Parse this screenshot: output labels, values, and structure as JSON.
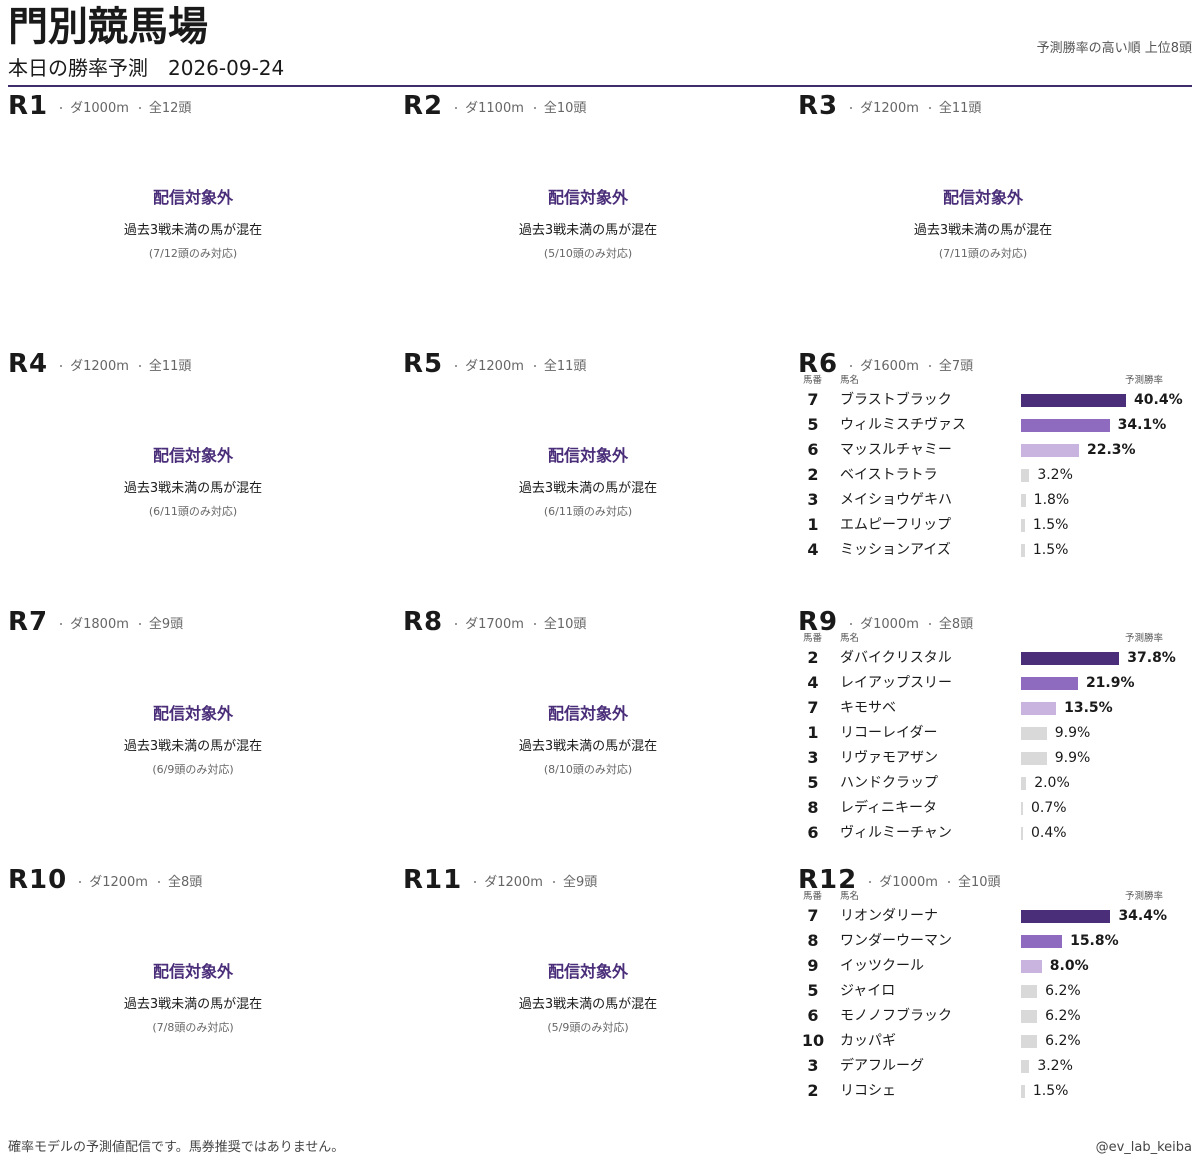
{
  "header": {
    "title": "門別競馬場",
    "subtitle": "本日の勝率予測　2026-09-24",
    "note": "予測勝率の高い順 上位8頭"
  },
  "races": [
    {
      "race": "R1",
      "course": "ダ1000m",
      "runners": "全12頭",
      "status": "配信対象外",
      "reason": "過去3戦未満の馬が混在",
      "coverage": "(7/12頭のみ対応)"
    },
    {
      "race": "R2",
      "course": "ダ1100m",
      "runners": "全10頭",
      "status": "配信対象外",
      "reason": "過去3戦未満の馬が混在",
      "coverage": "(5/10頭のみ対応)"
    },
    {
      "race": "R3",
      "course": "ダ1200m",
      "runners": "全11頭",
      "status": "配信対象外",
      "reason": "過去3戦未満の馬が混在",
      "coverage": "(7/11頭のみ対応)"
    },
    {
      "race": "R4",
      "course": "ダ1200m",
      "runners": "全11頭",
      "status": "配信対象外",
      "reason": "過去3戦未満の馬が混在",
      "coverage": "(6/11頭のみ対応)"
    },
    {
      "race": "R5",
      "course": "ダ1200m",
      "runners": "全11頭",
      "status": "配信対象外",
      "reason": "過去3戦未満の馬が混在",
      "coverage": "(6/11頭のみ対応)"
    },
    {
      "race": "R6",
      "course": "ダ1600m",
      "runners": "全7頭",
      "col_no": "馬番",
      "col_name": "馬名",
      "col_rate": "予測勝率",
      "horses": [
        {
          "no": 7,
          "name": "ブラストブラック",
          "rate": 40.4,
          "rate_label": "40.4%"
        },
        {
          "no": 5,
          "name": "ウィルミスチヴァス",
          "rate": 34.1,
          "rate_label": "34.1%"
        },
        {
          "no": 6,
          "name": "マッスルチャミー",
          "rate": 22.3,
          "rate_label": "22.3%"
        },
        {
          "no": 2,
          "name": "ベイストラトラ",
          "rate": 3.2,
          "rate_label": "3.2%"
        },
        {
          "no": 3,
          "name": "メイショウゲキハ",
          "rate": 1.8,
          "rate_label": "1.8%"
        },
        {
          "no": 1,
          "name": "エムピーフリップ",
          "rate": 1.5,
          "rate_label": "1.5%"
        },
        {
          "no": 4,
          "name": "ミッションアイズ",
          "rate": 1.5,
          "rate_label": "1.5%"
        }
      ]
    },
    {
      "race": "R7",
      "course": "ダ1800m",
      "runners": "全9頭",
      "status": "配信対象外",
      "reason": "過去3戦未満の馬が混在",
      "coverage": "(6/9頭のみ対応)"
    },
    {
      "race": "R8",
      "course": "ダ1700m",
      "runners": "全10頭",
      "status": "配信対象外",
      "reason": "過去3戦未満の馬が混在",
      "coverage": "(8/10頭のみ対応)"
    },
    {
      "race": "R9",
      "course": "ダ1000m",
      "runners": "全8頭",
      "col_no": "馬番",
      "col_name": "馬名",
      "col_rate": "予測勝率",
      "horses": [
        {
          "no": 2,
          "name": "ダバイクリスタル",
          "rate": 37.8,
          "rate_label": "37.8%"
        },
        {
          "no": 4,
          "name": "レイアップスリー",
          "rate": 21.9,
          "rate_label": "21.9%"
        },
        {
          "no": 7,
          "name": "キモサベ",
          "rate": 13.5,
          "rate_label": "13.5%"
        },
        {
          "no": 1,
          "name": "リコーレイダー",
          "rate": 9.9,
          "rate_label": "9.9%"
        },
        {
          "no": 3,
          "name": "リヴァモアザン",
          "rate": 9.9,
          "rate_label": "9.9%"
        },
        {
          "no": 5,
          "name": "ハンドクラップ",
          "rate": 2.0,
          "rate_label": "2.0%"
        },
        {
          "no": 8,
          "name": "レディニキータ",
          "rate": 0.7,
          "rate_label": "0.7%"
        },
        {
          "no": 6,
          "name": "ヴィルミーチャン",
          "rate": 0.4,
          "rate_label": "0.4%"
        }
      ]
    },
    {
      "race": "R10",
      "course": "ダ1200m",
      "runners": "全8頭",
      "status": "配信対象外",
      "reason": "過去3戦未満の馬が混在",
      "coverage": "(7/8頭のみ対応)"
    },
    {
      "race": "R11",
      "course": "ダ1200m",
      "runners": "全9頭",
      "status": "配信対象外",
      "reason": "過去3戦未満の馬が混在",
      "coverage": "(5/9頭のみ対応)"
    },
    {
      "race": "R12",
      "course": "ダ1000m",
      "runners": "全10頭",
      "col_no": "馬番",
      "col_name": "馬名",
      "col_rate": "予測勝率",
      "horses": [
        {
          "no": 7,
          "name": "リオンダリーナ",
          "rate": 34.4,
          "rate_label": "34.4%"
        },
        {
          "no": 8,
          "name": "ワンダーウーマン",
          "rate": 15.8,
          "rate_label": "15.8%"
        },
        {
          "no": 9,
          "name": "イッツクール",
          "rate": 8.0,
          "rate_label": "8.0%"
        },
        {
          "no": 5,
          "name": "ジャイロ",
          "rate": 6.2,
          "rate_label": "6.2%"
        },
        {
          "no": 6,
          "name": "モノノフブラック",
          "rate": 6.2,
          "rate_label": "6.2%"
        },
        {
          "no": 10,
          "name": "カッパギ",
          "rate": 6.2,
          "rate_label": "6.2%"
        },
        {
          "no": 3,
          "name": "デアフルーグ",
          "rate": 3.2,
          "rate_label": "3.2%"
        },
        {
          "no": 2,
          "name": "リコシェ",
          "rate": 1.5,
          "rate_label": "1.5%"
        }
      ]
    }
  ],
  "footer": {
    "disclaimer": "確率モデルの予測値配信です。馬券推奨ではありません。",
    "account": "@ev_lab_keiba"
  }
}
